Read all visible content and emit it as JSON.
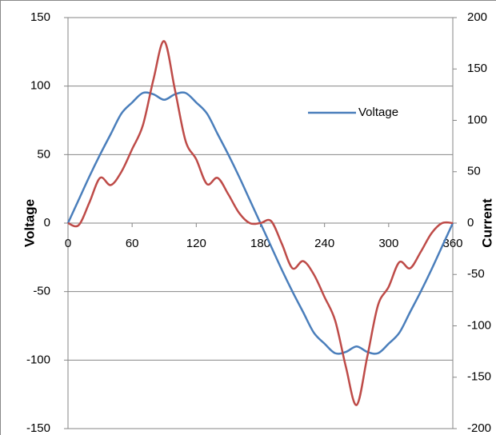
{
  "chart_data": {
    "type": "line",
    "x": [
      0,
      10,
      20,
      30,
      40,
      50,
      60,
      70,
      80,
      90,
      100,
      110,
      120,
      130,
      140,
      150,
      160,
      170,
      180,
      190,
      200,
      210,
      220,
      230,
      240,
      250,
      260,
      270,
      280,
      290,
      300,
      310,
      320,
      330,
      340,
      350,
      360
    ],
    "series": [
      {
        "name": "Voltage",
        "color": "#4a7ebb",
        "axis": "y",
        "values": [
          0,
          17,
          34,
          50,
          65,
          80,
          88,
          95,
          94,
          90,
          94,
          95,
          88,
          80,
          65,
          50,
          34,
          17,
          0,
          -17,
          -34,
          -50,
          -65,
          -80,
          -88,
          -95,
          -94,
          -90,
          -94,
          -95,
          -88,
          -80,
          -65,
          -50,
          -34,
          -17,
          0
        ]
      },
      {
        "color": "#be4b48",
        "axis": "y2",
        "values": [
          0,
          -2,
          20,
          44,
          37,
          50,
          72,
          95,
          140,
          177,
          130,
          80,
          62,
          38,
          44,
          28,
          10,
          0,
          0,
          2,
          -20,
          -44,
          -37,
          -50,
          -72,
          -95,
          -140,
          -177,
          -130,
          -80,
          -62,
          -38,
          -44,
          -28,
          -10,
          0,
          0
        ]
      }
    ],
    "y_label": "Voltage",
    "y2_label": "Current",
    "xlim": [
      0,
      360
    ],
    "xticks": [
      0,
      60,
      120,
      180,
      240,
      300,
      360
    ],
    "ylim": [
      -150,
      150
    ],
    "yticks": [
      -150,
      -100,
      -50,
      0,
      50,
      100,
      150
    ],
    "y2lim": [
      -200,
      200
    ],
    "y2ticks": [
      -200,
      -150,
      -100,
      -50,
      0,
      50,
      100,
      150,
      200
    ],
    "grid": true,
    "legend": "upper right"
  }
}
